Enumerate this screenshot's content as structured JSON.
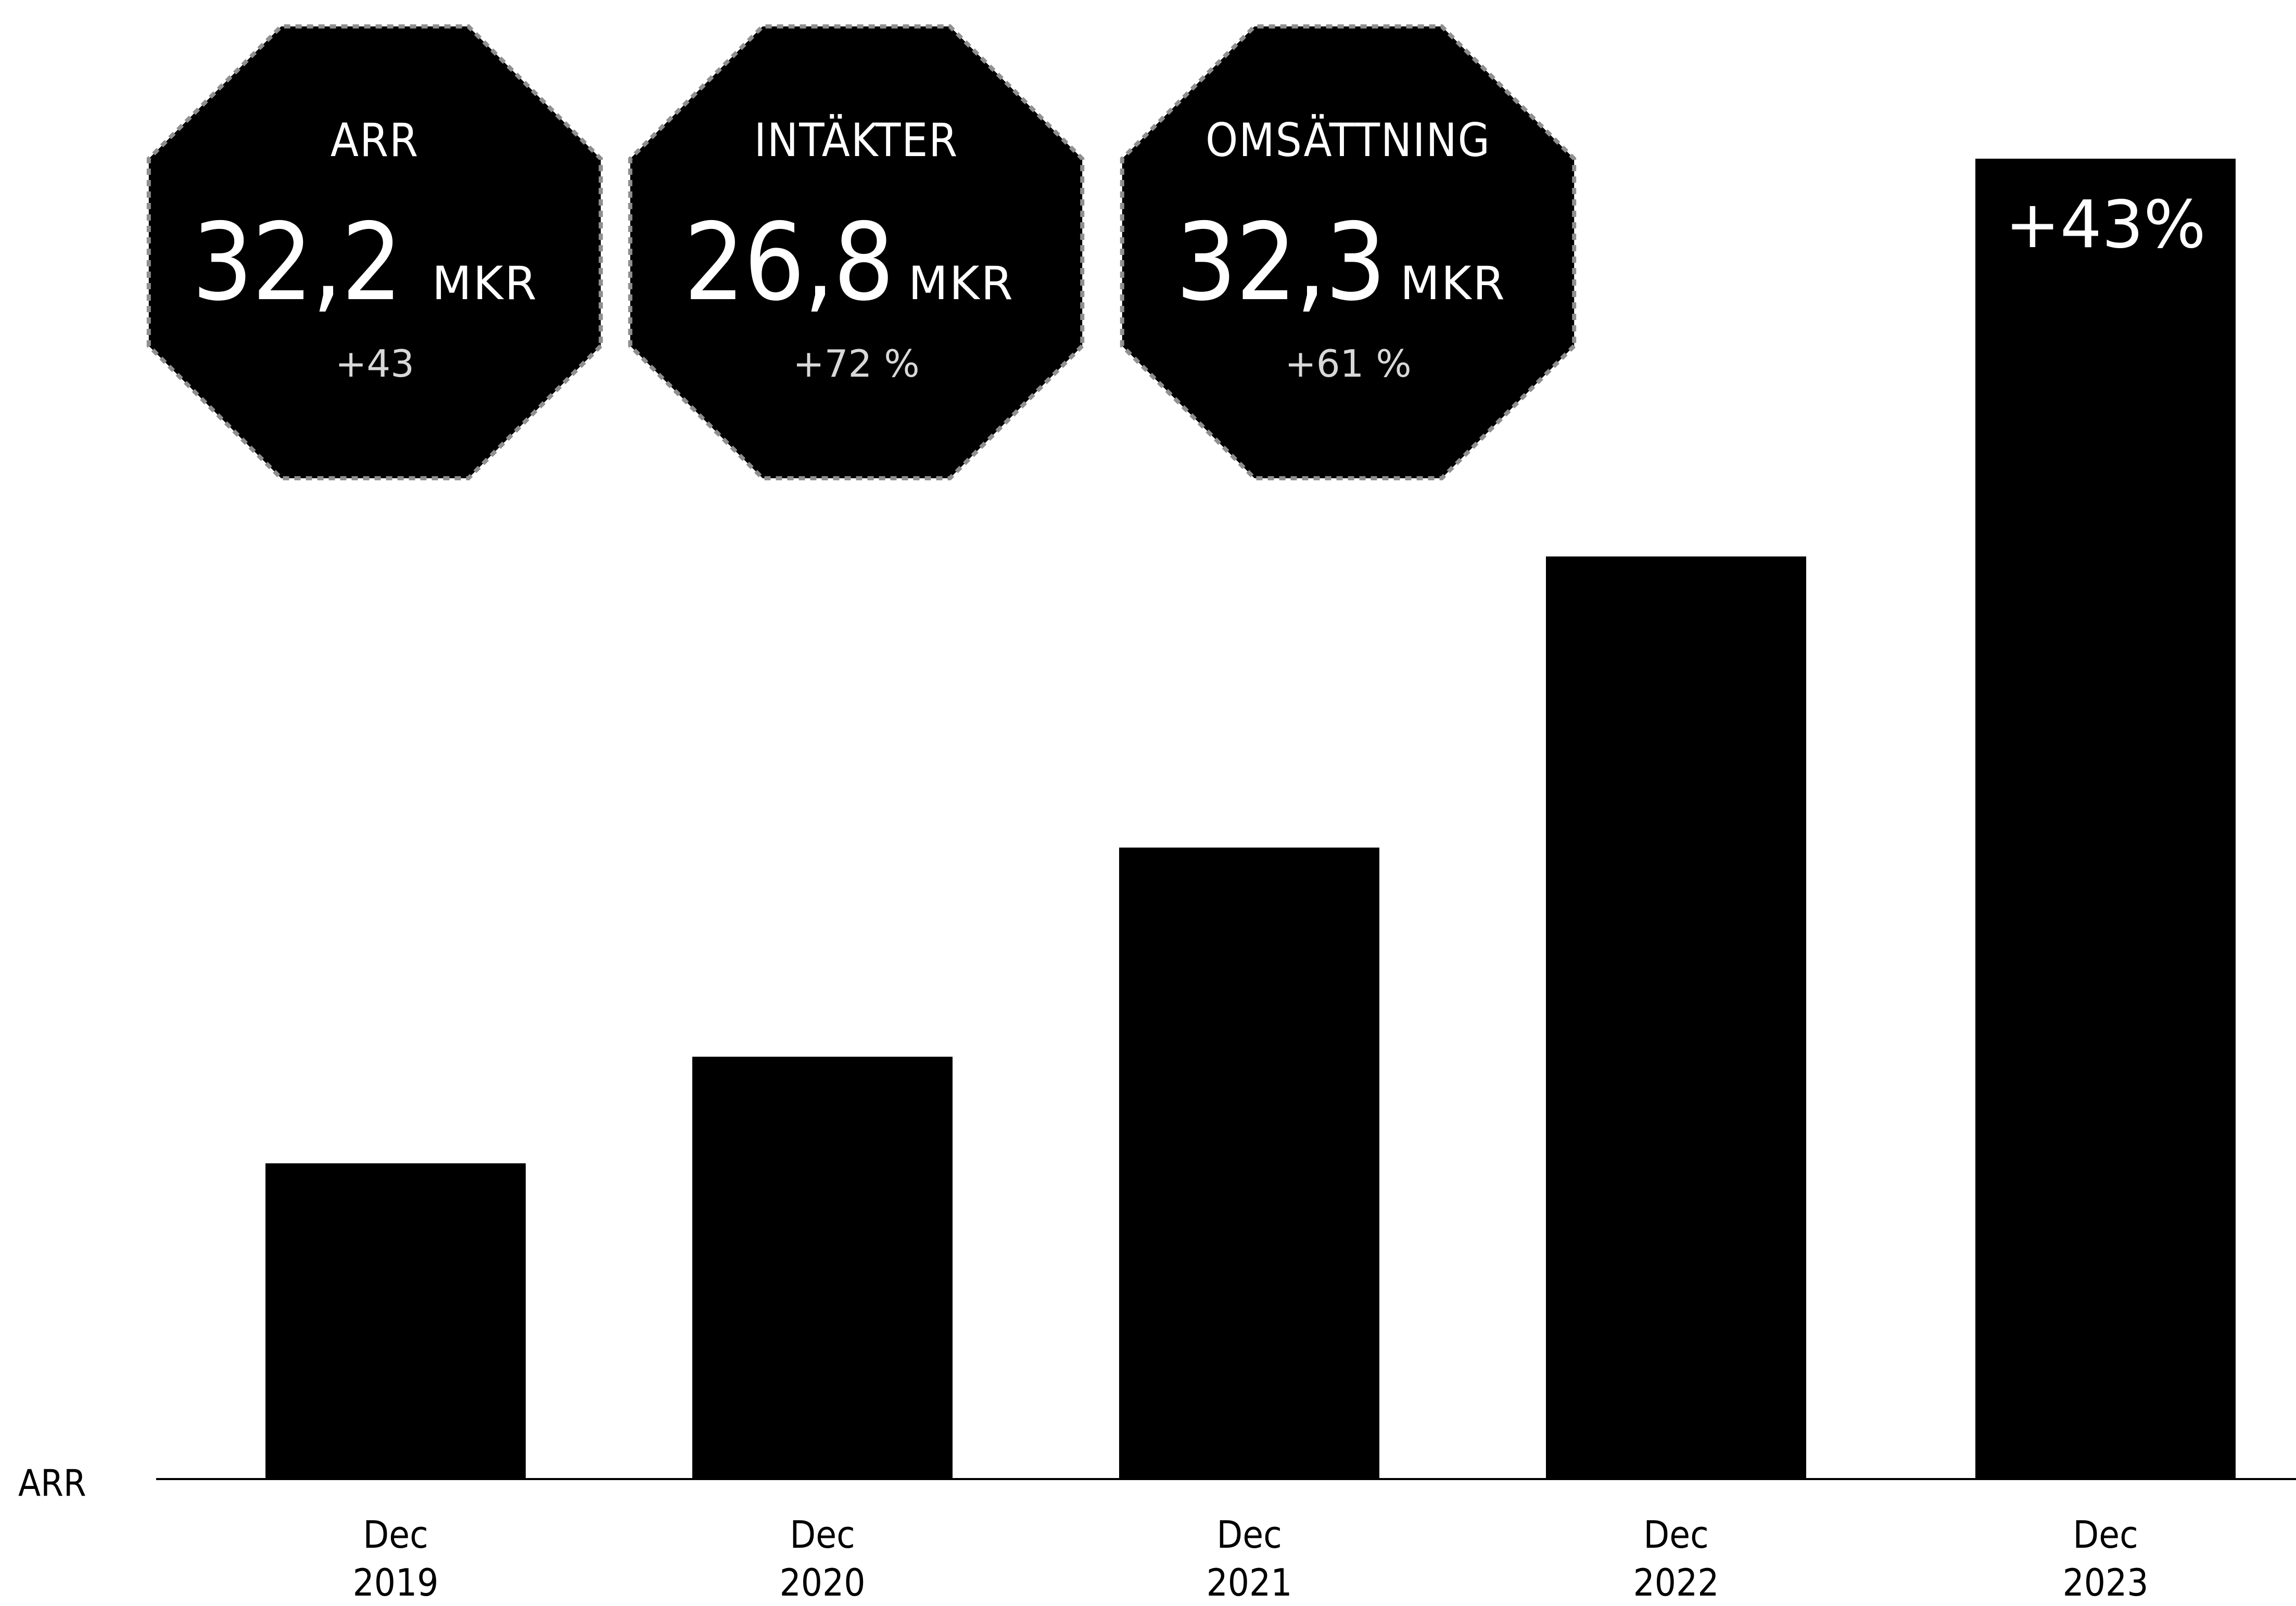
{
  "kpis": [
    {
      "title": "ARR",
      "value": "32,2",
      "unit": "MKR",
      "growth": "+43"
    },
    {
      "title": "INTÄKTER",
      "value": "26,8",
      "unit": "MKR",
      "growth": "+72 %"
    },
    {
      "title": "OMSÄTTNING",
      "value": "32,3",
      "unit": "MKR",
      "growth": "+61 %"
    }
  ],
  "chart_data": {
    "type": "bar",
    "categories": [
      [
        "Dec",
        "2019"
      ],
      [
        "Dec",
        "2020"
      ],
      [
        "Dec",
        "2021"
      ],
      [
        "Dec",
        "2022"
      ],
      [
        "Dec",
        "2023"
      ]
    ],
    "values": [
      7.7,
      10.3,
      15.4,
      22.5,
      32.2
    ],
    "ylabel": "ARR",
    "ylim": [
      0,
      32.2
    ],
    "annotations": [
      {
        "category_index": 4,
        "text": "+43%"
      }
    ],
    "grid": false,
    "colors": {
      "bars": "#000000",
      "axis": "#000000",
      "background": "#ffffff"
    }
  }
}
